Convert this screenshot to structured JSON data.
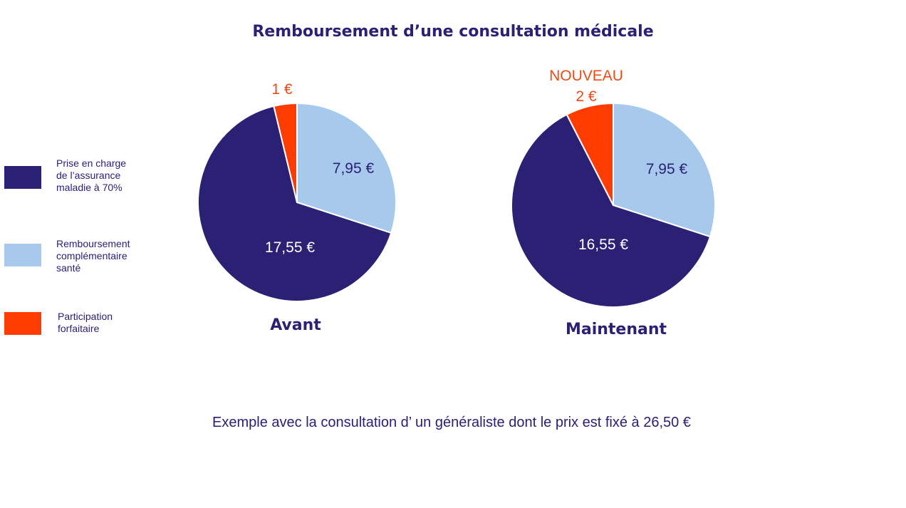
{
  "title": "Remboursement d’une consultation médicale",
  "footer": "Exemple avec la consultation d’ un généraliste dont le prix est fixé à 26,50 €",
  "colors": {
    "assurance": "#2a2174",
    "complementaire": "#a6c9ec",
    "participation": "#ff3c00",
    "label_light": "#ffffff",
    "label_dark": "#2a2174",
    "label_orange": "#f04a14"
  },
  "legend": [
    {
      "key": "assurance",
      "label_lines": [
        "Prise en charge",
        "de l’assurance",
        "maladie à 70%"
      ]
    },
    {
      "key": "complementaire",
      "label_lines": [
        "Remboursement",
        "complémentaire",
        "santé"
      ]
    },
    {
      "key": "participation",
      "label_lines": [
        "Participation",
        "forfaitaire"
      ]
    }
  ],
  "chart_data": [
    {
      "type": "pie",
      "title": "Avant",
      "slices": [
        {
          "key": "complementaire",
          "value": 7.95,
          "label": "7,95 €"
        },
        {
          "key": "assurance",
          "value": 17.55,
          "label": "17,55 €"
        },
        {
          "key": "participation",
          "value": 1,
          "label": "1 €"
        }
      ],
      "annotation": ""
    },
    {
      "type": "pie",
      "title": "Maintenant",
      "slices": [
        {
          "key": "complementaire",
          "value": 7.95,
          "label": "7,95 €"
        },
        {
          "key": "assurance",
          "value": 16.55,
          "label": "16,55 €"
        },
        {
          "key": "participation",
          "value": 2,
          "label": "2 €"
        }
      ],
      "annotation": "NOUVEAU"
    }
  ]
}
